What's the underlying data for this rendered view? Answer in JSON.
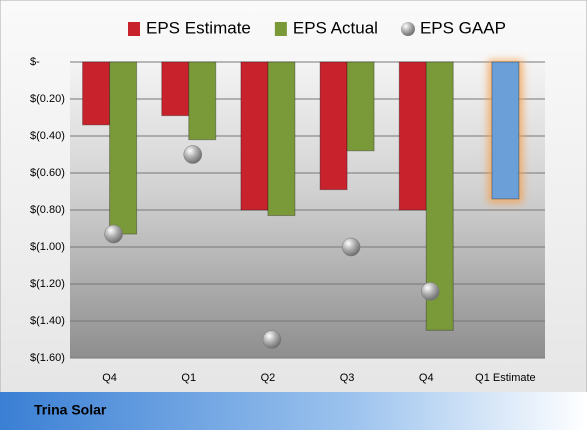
{
  "chart_data": {
    "type": "bar",
    "categories": [
      "Q4",
      "Q1",
      "Q2",
      "Q3",
      "Q4",
      "Q1 Estimate"
    ],
    "series": [
      {
        "name": "EPS Estimate",
        "color": "#c8232c",
        "point_colors": [
          "#c8232c",
          "#c8232c",
          "#c8232c",
          "#c8232c",
          "#c8232c",
          "#6a9fd8"
        ],
        "values": [
          -0.34,
          -0.29,
          -0.8,
          -0.69,
          -0.8,
          -0.74
        ]
      },
      {
        "name": "EPS Actual",
        "color": "#7a9a3a",
        "values": [
          -0.93,
          -0.42,
          -0.83,
          -0.48,
          -1.45,
          null
        ]
      },
      {
        "name": "EPS GAAP",
        "color": "#a0a0a0",
        "marker": "sphere",
        "values": [
          -0.93,
          -0.5,
          -1.5,
          -1.0,
          -1.24,
          null
        ]
      }
    ],
    "ylim": [
      -1.6,
      0
    ],
    "yticks": [
      {
        "value": 0,
        "label": "$-"
      },
      {
        "value": -0.2,
        "label": "$(0.20)"
      },
      {
        "value": -0.4,
        "label": "$(0.40)"
      },
      {
        "value": -0.6,
        "label": "$(0.60)"
      },
      {
        "value": -0.8,
        "label": "$(0.80)"
      },
      {
        "value": -1.0,
        "label": "$(1.00)"
      },
      {
        "value": -1.2,
        "label": "$(1.20)"
      },
      {
        "value": -1.4,
        "label": "$(1.40)"
      },
      {
        "value": -1.6,
        "label": "$(1.60)"
      }
    ],
    "grid": true,
    "legend": "top",
    "source": "Trina Solar"
  }
}
